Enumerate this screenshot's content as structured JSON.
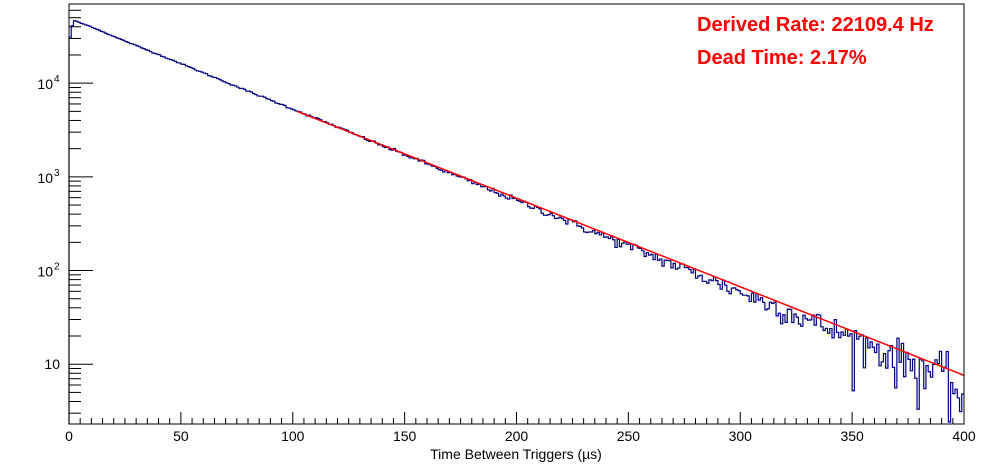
{
  "colors": {
    "histogram": "#000080",
    "fit": "#ff0000",
    "annotation": "#ff0000",
    "axis": "#000000"
  },
  "annotations": {
    "rate": "Derived Rate: 22109.4 Hz",
    "dead_time": "Dead Time: 2.17%"
  },
  "chart_data": {
    "type": "line",
    "title": "",
    "xlabel": "Time Between Triggers (µs)",
    "ylabel": "",
    "xlim": [
      0,
      400
    ],
    "ylim": [
      2.3,
      70000
    ],
    "yscale": "log",
    "grid": false,
    "legend": "none",
    "x_ticks": [
      "0",
      "50",
      "100",
      "150",
      "200",
      "250",
      "300",
      "350",
      "400"
    ],
    "y_ticks": [
      "10",
      "10^2",
      "10^3",
      "10^4"
    ],
    "series": [
      {
        "kind": "histogram",
        "bin_width": 1,
        "x": [
          0,
          2,
          5,
          10,
          20,
          30,
          40,
          50,
          60,
          70,
          80,
          90,
          100,
          110,
          120,
          130,
          140,
          150,
          160,
          170,
          180,
          190,
          200,
          210,
          220,
          230,
          240,
          250,
          260,
          270,
          280,
          290,
          300,
          310,
          320,
          330,
          340,
          350,
          360,
          370,
          380,
          390,
          395,
          400
        ],
        "y": [
          27000,
          47000,
          44000,
          40000,
          31500,
          25200,
          20200,
          16200,
          12900,
          10300,
          8200,
          6600,
          5300,
          4250,
          3400,
          2700,
          2150,
          1730,
          1380,
          1100,
          880,
          700,
          560,
          450,
          360,
          285,
          228,
          182,
          146,
          116,
          93,
          74,
          59,
          47,
          38,
          30,
          24,
          19,
          15.2,
          12.1,
          9.7,
          7.8,
          6.5,
          3.5
        ]
      },
      {
        "kind": "fit",
        "x": [
          102,
          400
        ],
        "y": [
          5000,
          7.6
        ]
      }
    ]
  }
}
